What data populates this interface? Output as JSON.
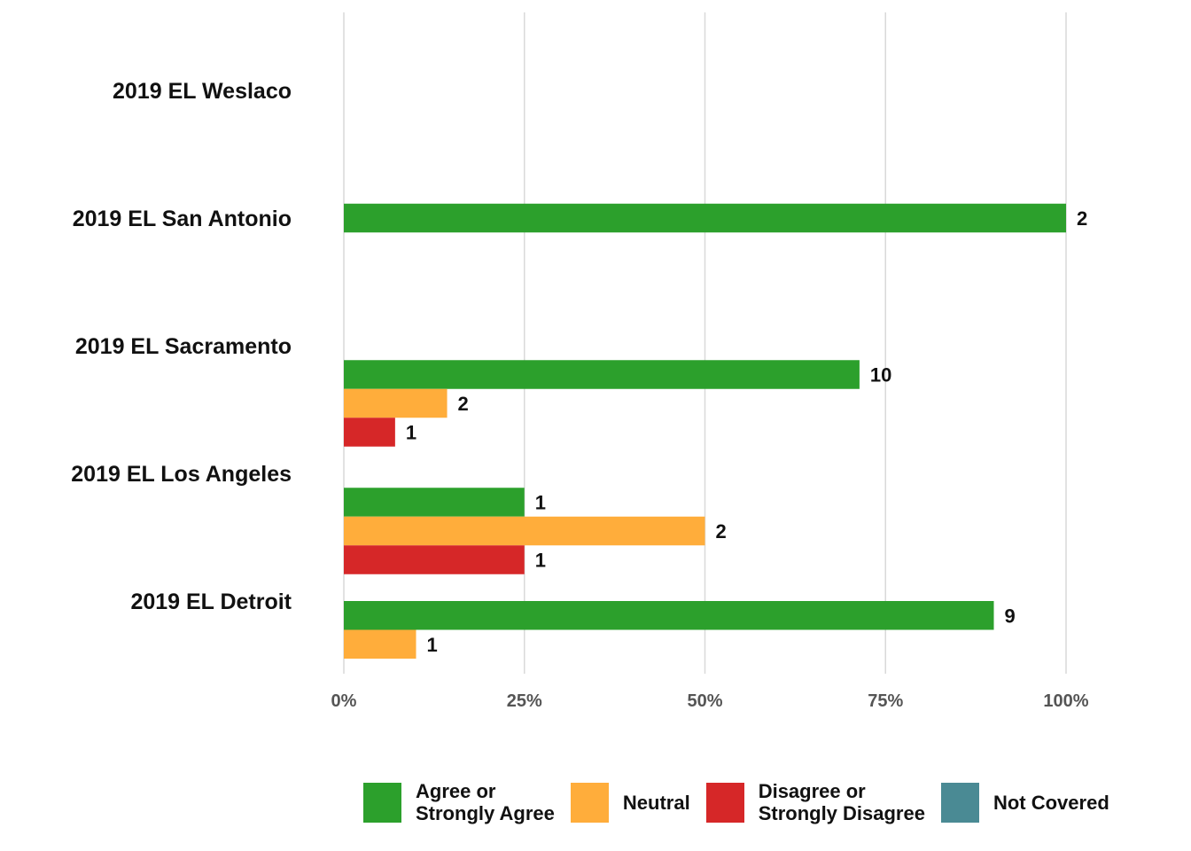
{
  "chart_data": {
    "type": "bar",
    "orientation": "horizontal",
    "categories": [
      "2019 EL Weslaco",
      "2019 EL San Antonio",
      "2019 EL Sacramento",
      "2019 EL Los Angeles",
      "2019 EL Detroit"
    ],
    "series": [
      {
        "name": "Agree or\nStrongly Agree",
        "color": "#2ca02c",
        "values": [
          null,
          100,
          71.4,
          25,
          90
        ],
        "labels": [
          null,
          "2",
          "10",
          "1",
          "9"
        ]
      },
      {
        "name": "Neutral",
        "color": "#ffad3b",
        "values": [
          null,
          null,
          14.3,
          50,
          10
        ],
        "labels": [
          null,
          null,
          "2",
          "2",
          "1"
        ]
      },
      {
        "name": "Disagree or\nStrongly Disagree",
        "color": "#d62728",
        "values": [
          null,
          null,
          7.1,
          25,
          null
        ],
        "labels": [
          null,
          null,
          "1",
          "1",
          null
        ]
      },
      {
        "name": "Not Covered",
        "color": "#4a8a94",
        "values": [
          null,
          null,
          null,
          null,
          null
        ],
        "labels": [
          null,
          null,
          null,
          null,
          null
        ]
      }
    ],
    "x_ticks": [
      "0%",
      "25%",
      "50%",
      "75%",
      "100%"
    ],
    "xlim": [
      0,
      100
    ],
    "grid": "vertical",
    "legend_position": "bottom-right",
    "xlabel": "",
    "ylabel": "",
    "title": ""
  }
}
